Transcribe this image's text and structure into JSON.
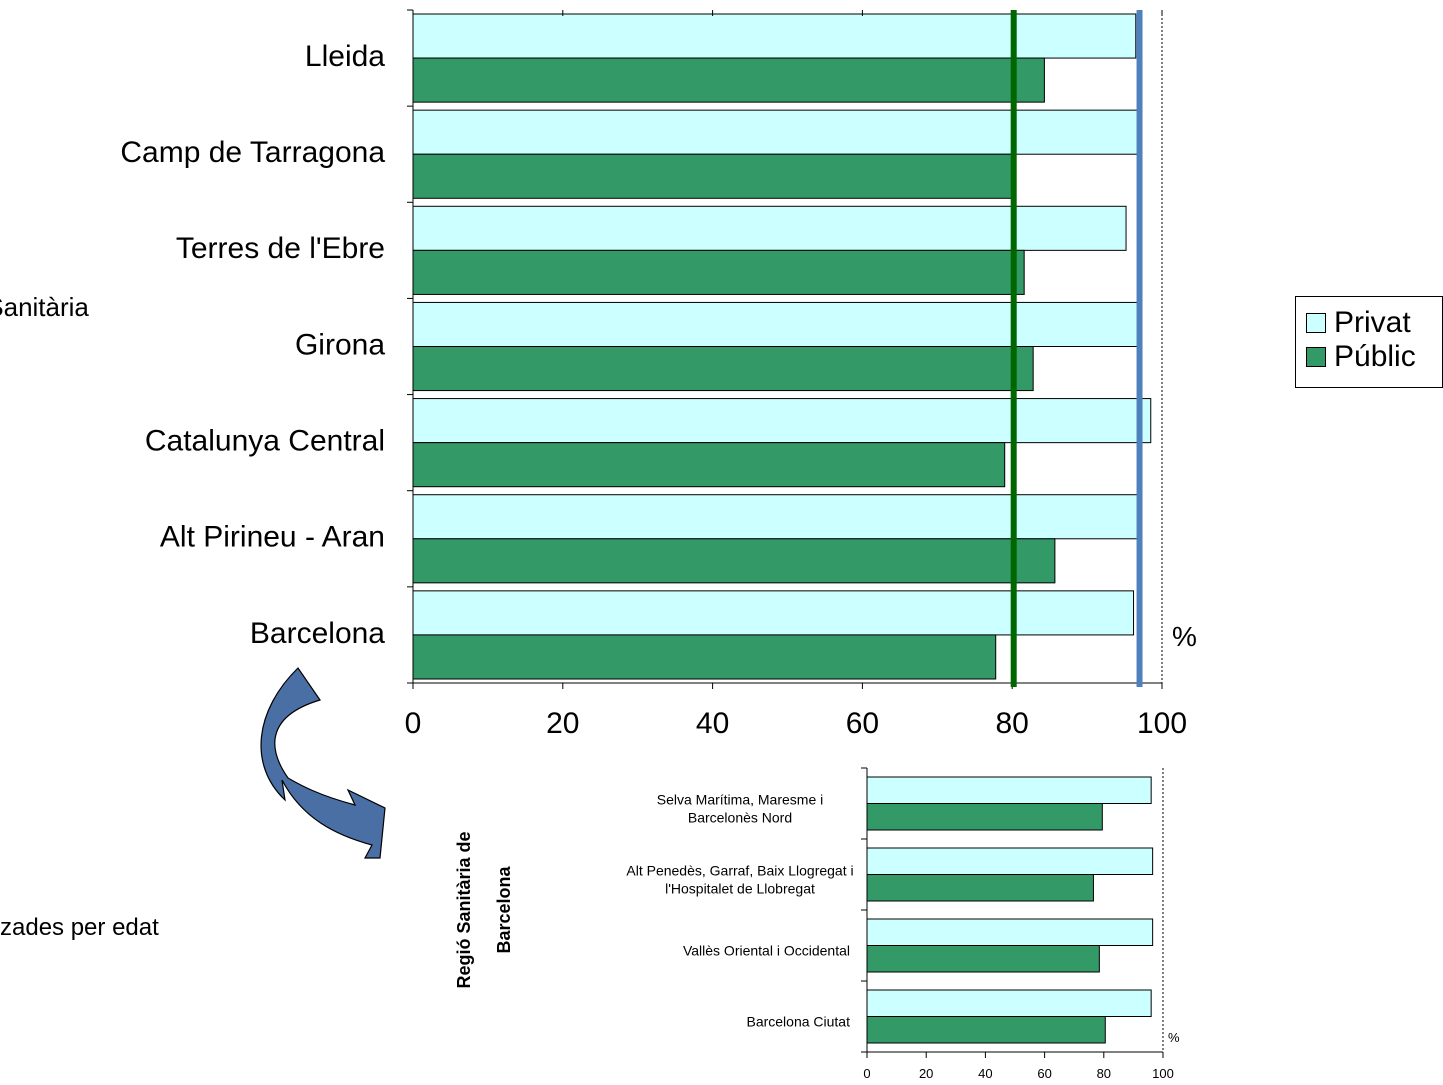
{
  "colors": {
    "privat": "#ccffff",
    "public": "#339966",
    "public_ref_line": "#006600",
    "privat_ref_line": "#4f81bd",
    "arrow": "#4a6fa5"
  },
  "legend": [
    {
      "label": "Privat",
      "color": "#ccffff"
    },
    {
      "label": "Públic",
      "color": "#339966"
    }
  ],
  "footer_text": "zades per edat",
  "chart_data": [
    {
      "type": "bar",
      "orientation": "horizontal",
      "ylabel": "Regió Sanitària",
      "unit_label": "%",
      "xlim": [
        0,
        100
      ],
      "x_ticks": [
        "0",
        "20",
        "40",
        "60",
        "80",
        "100"
      ],
      "categories": [
        "Lleida",
        "Camp de Tarragona",
        "Terres de l'Ebre",
        "Girona",
        "Catalunya Central",
        "Alt Pirineu - Aran",
        "Barcelona"
      ],
      "series": [
        {
          "name": "Privat",
          "values": [
            96.5,
            97.0,
            95.2,
            97.0,
            98.5,
            97.0,
            96.2
          ]
        },
        {
          "name": "Públic",
          "values": [
            84.3,
            80.0,
            81.6,
            82.8,
            79.0,
            85.7,
            77.8
          ]
        }
      ],
      "reference_lines": [
        {
          "value": 80.2,
          "color": "#006600"
        },
        {
          "value": 97.0,
          "color": "#4f81bd"
        }
      ],
      "grid": false
    },
    {
      "type": "bar",
      "orientation": "horizontal",
      "ylabel": "Regió Sanitària de Barcelona",
      "unit_label": "%",
      "xlim": [
        0,
        100
      ],
      "x_ticks": [
        "0",
        "20",
        "40",
        "60",
        "80",
        "100"
      ],
      "categories": [
        [
          "Selva Marítima, Maresme i",
          "Barcelonès Nord"
        ],
        [
          "Alt Penedès, Garraf, Baix Llogregat i",
          "l'Hospitalet de Llobregat"
        ],
        [
          "Vallès Oriental i Occidental"
        ],
        [
          "Barcelona Ciutat"
        ]
      ],
      "series": [
        {
          "name": "Privat",
          "values": [
            96.0,
            96.5,
            96.5,
            96.0
          ]
        },
        {
          "name": "Públic",
          "values": [
            79.5,
            76.5,
            78.5,
            80.5
          ]
        }
      ],
      "grid": false
    }
  ]
}
